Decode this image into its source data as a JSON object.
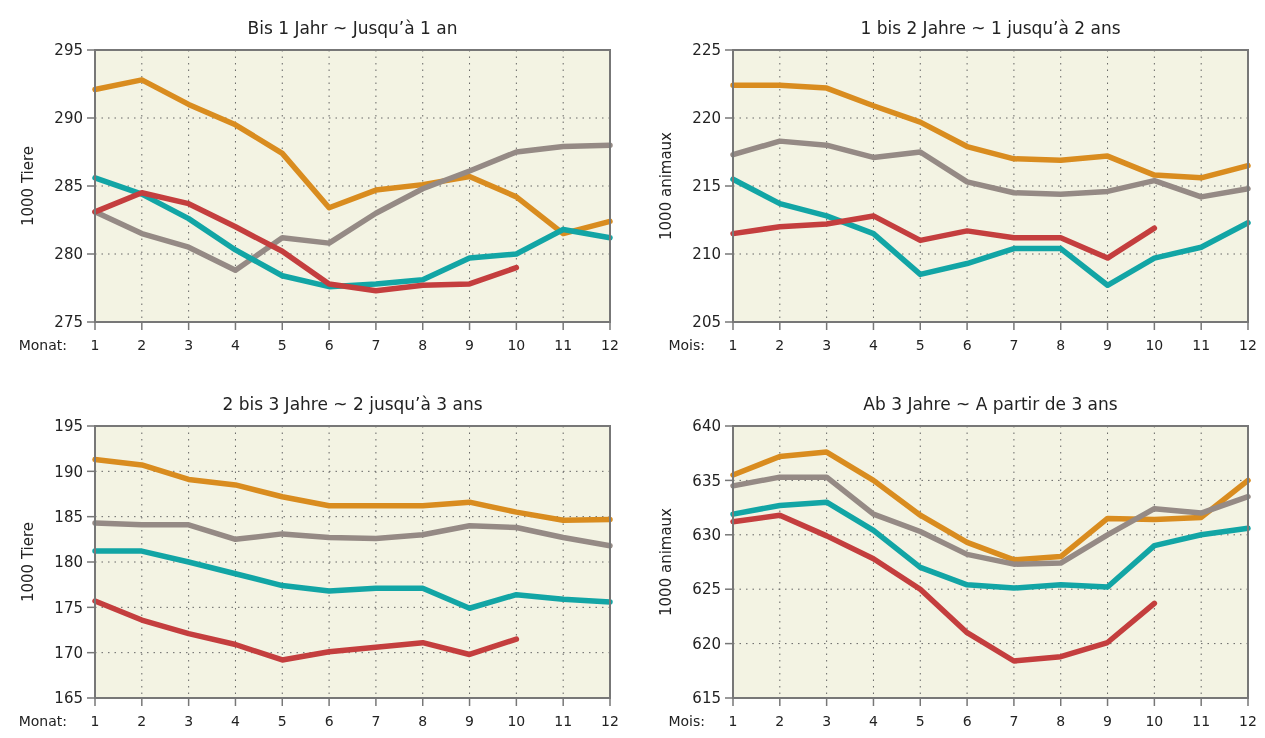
{
  "chart_data": [
    {
      "type": "line",
      "title": "Bis 1 Jahr ~ Jusqu’à 1 an",
      "xlabel": "Monat:",
      "ylabel": "1000 Tiere",
      "x": [
        1,
        2,
        3,
        4,
        5,
        6,
        7,
        8,
        9,
        10,
        11,
        12
      ],
      "xlim": [
        1,
        12
      ],
      "xticks": [
        1,
        2,
        3,
        4,
        5,
        6,
        7,
        8,
        9,
        10,
        11,
        12
      ],
      "ylim": [
        275,
        295
      ],
      "yticks": [
        275,
        280,
        285,
        290,
        295
      ],
      "grid": true,
      "marker": "none",
      "line_style": "solid",
      "series": [
        {
          "color": "#d98c1f",
          "values": [
            292.1,
            292.8,
            291.0,
            289.5,
            287.4,
            283.4,
            284.7,
            285.1,
            285.7,
            284.2,
            281.5,
            282.4
          ]
        },
        {
          "color": "#958a85",
          "values": [
            283.1,
            281.5,
            280.5,
            278.8,
            281.2,
            280.8,
            283.0,
            284.8,
            286.1,
            287.5,
            287.9,
            288.0
          ]
        },
        {
          "color": "#12a5a5",
          "values": [
            285.6,
            284.4,
            282.6,
            280.3,
            278.4,
            277.6,
            277.8,
            278.1,
            279.7,
            280.0,
            281.8,
            281.2
          ]
        },
        {
          "color": "#c43e3e",
          "values": [
            283.1,
            284.5,
            283.7,
            282.0,
            280.2,
            277.8,
            277.3,
            277.7,
            277.8,
            279.0,
            null,
            null
          ]
        }
      ]
    },
    {
      "type": "line",
      "title": "1 bis 2 Jahre ~ 1 jusqu’à 2 ans",
      "xlabel": "Mois:",
      "ylabel": "1000 animaux",
      "x": [
        1,
        2,
        3,
        4,
        5,
        6,
        7,
        8,
        9,
        10,
        11,
        12
      ],
      "xlim": [
        1,
        12
      ],
      "xticks": [
        1,
        2,
        3,
        4,
        5,
        6,
        7,
        8,
        9,
        10,
        11,
        12
      ],
      "ylim": [
        205,
        225
      ],
      "yticks": [
        205,
        210,
        215,
        220,
        225
      ],
      "grid": true,
      "marker": "none",
      "line_style": "solid",
      "series": [
        {
          "color": "#d98c1f",
          "values": [
            222.4,
            222.4,
            222.2,
            220.9,
            219.7,
            217.9,
            217.0,
            216.9,
            217.2,
            215.8,
            215.6,
            216.5
          ]
        },
        {
          "color": "#958a85",
          "values": [
            217.3,
            218.3,
            218.0,
            217.1,
            217.5,
            215.3,
            214.5,
            214.4,
            214.6,
            215.4,
            214.2,
            214.8
          ]
        },
        {
          "color": "#12a5a5",
          "values": [
            215.5,
            213.7,
            212.8,
            211.5,
            208.5,
            209.3,
            210.4,
            210.4,
            207.7,
            209.7,
            210.5,
            212.3
          ]
        },
        {
          "color": "#c43e3e",
          "values": [
            211.5,
            212.0,
            212.2,
            212.8,
            211.0,
            211.7,
            211.2,
            211.2,
            209.7,
            211.9,
            null,
            null
          ]
        }
      ]
    },
    {
      "type": "line",
      "title": "2 bis 3 Jahre ~ 2 jusqu’à 3 ans",
      "xlabel": "Monat:",
      "ylabel": "1000 Tiere",
      "x": [
        1,
        2,
        3,
        4,
        5,
        6,
        7,
        8,
        9,
        10,
        11,
        12
      ],
      "xlim": [
        1,
        12
      ],
      "xticks": [
        1,
        2,
        3,
        4,
        5,
        6,
        7,
        8,
        9,
        10,
        11,
        12
      ],
      "ylim": [
        165,
        195
      ],
      "yticks": [
        165,
        170,
        175,
        180,
        185,
        190,
        195
      ],
      "grid": true,
      "marker": "none",
      "line_style": "solid",
      "series": [
        {
          "color": "#d98c1f",
          "values": [
            191.3,
            190.7,
            189.1,
            188.5,
            187.2,
            186.2,
            186.2,
            186.2,
            186.6,
            185.5,
            184.6,
            184.7
          ]
        },
        {
          "color": "#958a85",
          "values": [
            184.3,
            184.1,
            184.1,
            182.5,
            183.1,
            182.7,
            182.6,
            183.0,
            184.0,
            183.8,
            182.7,
            181.8
          ]
        },
        {
          "color": "#12a5a5",
          "values": [
            181.2,
            181.2,
            180.0,
            178.7,
            177.4,
            176.8,
            177.1,
            177.1,
            174.9,
            176.4,
            175.9,
            175.6
          ]
        },
        {
          "color": "#c43e3e",
          "values": [
            175.7,
            173.6,
            172.1,
            170.9,
            169.2,
            170.1,
            170.6,
            171.1,
            169.8,
            171.5,
            null,
            null
          ]
        }
      ]
    },
    {
      "type": "line",
      "title": "Ab 3 Jahre ~ A partir de 3 ans",
      "xlabel": "Mois:",
      "ylabel": "1000 animaux",
      "x": [
        1,
        2,
        3,
        4,
        5,
        6,
        7,
        8,
        9,
        10,
        11,
        12
      ],
      "xlim": [
        1,
        12
      ],
      "xticks": [
        1,
        2,
        3,
        4,
        5,
        6,
        7,
        8,
        9,
        10,
        11,
        12
      ],
      "ylim": [
        615,
        640
      ],
      "yticks": [
        615,
        620,
        625,
        630,
        635,
        640
      ],
      "grid": true,
      "marker": "none",
      "line_style": "solid",
      "series": [
        {
          "color": "#d98c1f",
          "values": [
            635.5,
            637.2,
            637.6,
            635.0,
            631.8,
            629.3,
            627.7,
            628.0,
            631.5,
            631.4,
            631.6,
            635.0
          ]
        },
        {
          "color": "#958a85",
          "values": [
            634.5,
            635.3,
            635.3,
            631.9,
            630.3,
            628.2,
            627.3,
            627.4,
            630.0,
            632.4,
            632.0,
            633.5
          ]
        },
        {
          "color": "#12a5a5",
          "values": [
            631.9,
            632.7,
            633.0,
            630.4,
            627.0,
            625.4,
            625.1,
            625.4,
            625.2,
            629.0,
            630.0,
            630.6
          ]
        },
        {
          "color": "#c43e3e",
          "values": [
            631.2,
            631.8,
            629.9,
            627.8,
            625.0,
            621.0,
            618.4,
            618.8,
            620.1,
            623.7,
            null,
            null
          ]
        }
      ]
    }
  ]
}
